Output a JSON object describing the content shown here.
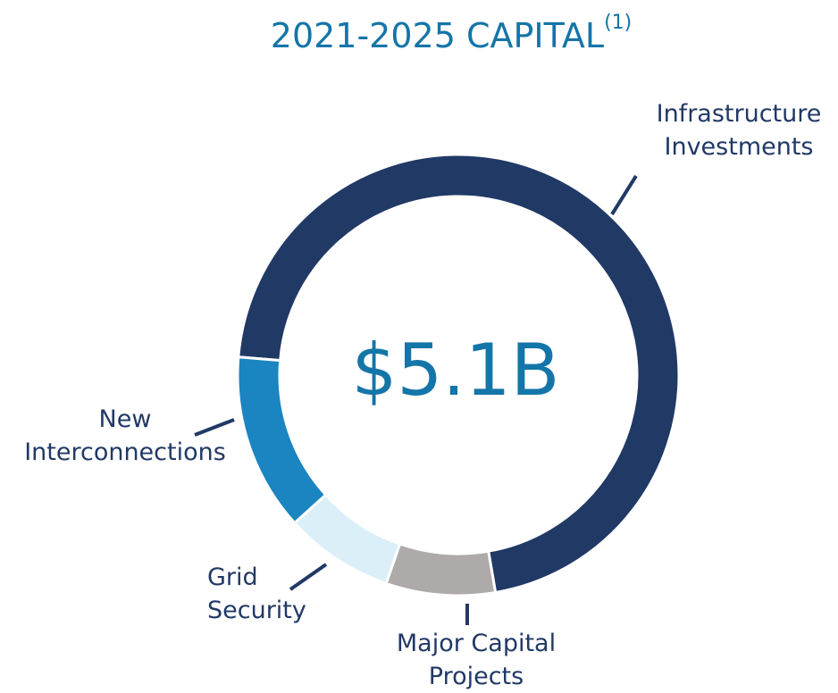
{
  "chart_data": {
    "type": "donut",
    "title": "2021-2025 CAPITAL",
    "title_note": "(1)",
    "center_label": "$5.1B",
    "categories": [
      "Infrastructure Investments",
      "Major Capital Projects",
      "Grid Security",
      "New Interconnections"
    ],
    "values": [
      71,
      8,
      8,
      13
    ],
    "colors": [
      "#213965",
      "#aeaaaa",
      "#dbeff8",
      "#1a85c1"
    ]
  }
}
